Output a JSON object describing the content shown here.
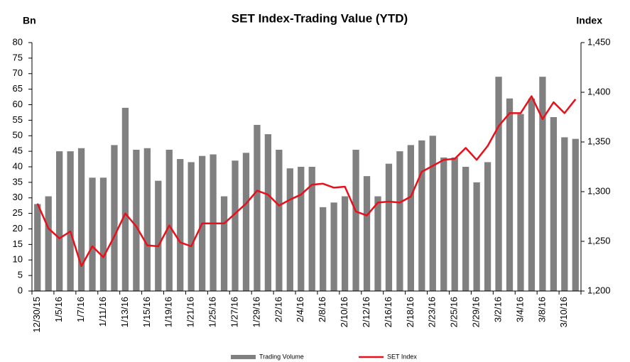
{
  "chart_data": {
    "type": "bar_line",
    "title": "SET Index-Trading Value (YTD)",
    "y_label": "Bn",
    "y2_label": "Index",
    "categories": [
      "12/30/15",
      null,
      "1/5/16",
      null,
      "1/7/16",
      null,
      "1/11/16",
      null,
      "1/13/16",
      null,
      "1/15/16",
      null,
      "1/19/16",
      null,
      "1/21/16",
      null,
      "1/25/16",
      null,
      "1/27/16",
      null,
      "1/29/16",
      null,
      "2/2/16",
      null,
      "2/4/16",
      null,
      "2/8/16",
      null,
      "2/10/16",
      null,
      "2/12/16",
      null,
      "2/16/16",
      null,
      "2/18/16",
      null,
      "2/23/16",
      null,
      "2/25/16",
      null,
      "2/29/16",
      null,
      "3/2/16",
      null,
      "3/4/16",
      null,
      "3/8/16",
      null,
      "3/10/16",
      null
    ],
    "series": [
      {
        "name": "Trading Volume",
        "type": "bar",
        "color": "#808080",
        "values": [
          28,
          30.5,
          45,
          45,
          46,
          36.5,
          36.5,
          47,
          59,
          45.5,
          46,
          35.5,
          45.5,
          42.5,
          41.5,
          43.5,
          44,
          30.5,
          42,
          44.5,
          53.5,
          50.5,
          45.5,
          39.5,
          40,
          40,
          27,
          28.5,
          30.5,
          45.5,
          37,
          30.5,
          41,
          45,
          47,
          48.5,
          50,
          43,
          43,
          40,
          35,
          41.5,
          69,
          62,
          57,
          62,
          69,
          56,
          49.5,
          49
        ]
      },
      {
        "name": "SET Index",
        "type": "line",
        "axis": "y2",
        "color": "#e8101a",
        "values": [
          1288,
          1263,
          1253,
          1260,
          1225,
          1245,
          1234,
          1255,
          1278,
          1265,
          1246,
          1245,
          1266,
          1249,
          1245,
          1268,
          1268,
          1268,
          1278,
          1288,
          1301,
          1297,
          1286,
          1292,
          1297,
          1307,
          1308,
          1304,
          1305,
          1280,
          1276,
          1289,
          1290,
          1289,
          1295,
          1320,
          1326,
          1332,
          1333,
          1344,
          1332,
          1346,
          1366,
          1379,
          1379,
          1396,
          1373,
          1390,
          1379,
          1393
        ]
      }
    ],
    "ylim": [
      0,
      80
    ],
    "yticks": [
      0,
      5,
      10,
      15,
      20,
      25,
      30,
      35,
      40,
      45,
      50,
      55,
      60,
      65,
      70,
      75,
      80
    ],
    "y2lim": [
      1200,
      1450
    ],
    "y2ticks": [
      {
        "value": 1200,
        "label": "1,200"
      },
      {
        "value": 1250,
        "label": "1,250"
      },
      {
        "value": 1300,
        "label": "1,300"
      },
      {
        "value": 1350,
        "label": "1,350"
      },
      {
        "value": 1400,
        "label": "1,400"
      },
      {
        "value": 1450,
        "label": "1,450"
      }
    ],
    "grid": false,
    "legend": "bottom"
  }
}
